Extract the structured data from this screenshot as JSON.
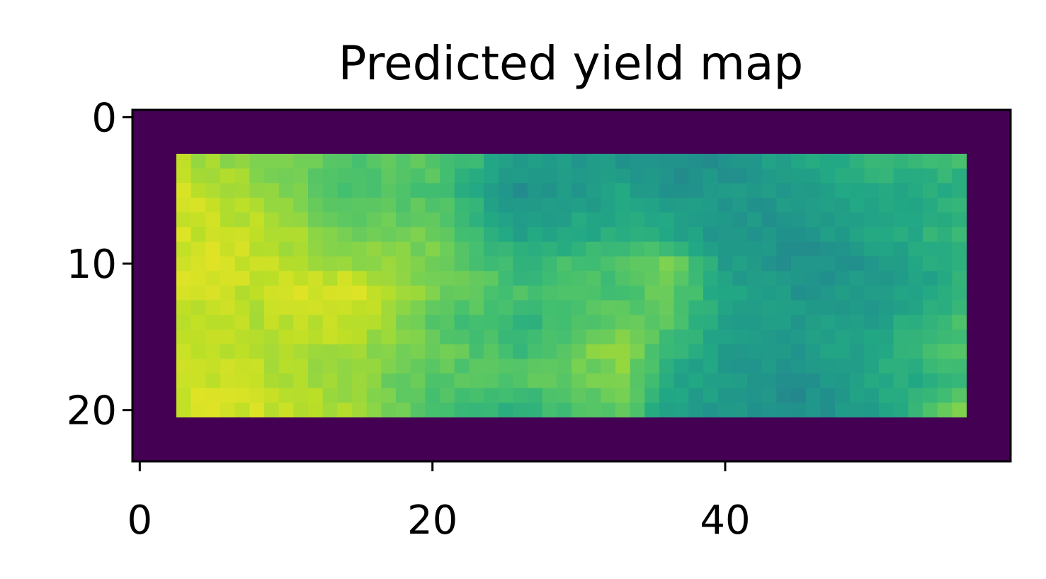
{
  "chart_data": {
    "type": "heatmap",
    "title": "Predicted yield map",
    "xlabel": "",
    "ylabel": "",
    "colormap": "viridis",
    "grid": false,
    "n_rows": 24,
    "n_cols": 60,
    "xlim": [
      -0.5,
      59.5
    ],
    "ylim": [
      23.5,
      -0.5
    ],
    "x_ticks": [
      0,
      20,
      40
    ],
    "y_ticks": [
      0,
      10,
      20
    ],
    "x_tick_labels": [
      "0",
      "20",
      "40"
    ],
    "y_tick_labels": [
      "0",
      "10",
      "20"
    ],
    "masked_value": 0,
    "valid_rows": [
      3,
      20
    ],
    "valid_cols": [
      3,
      56
    ],
    "value_range": [
      0,
      1
    ],
    "row_profiles": {
      "columns_at": [
        3,
        8,
        14,
        20,
        26,
        33,
        36,
        40,
        45,
        50,
        56
      ],
      "3": [
        0.88,
        0.82,
        0.72,
        0.75,
        0.55,
        0.52,
        0.48,
        0.5,
        0.58,
        0.66,
        0.68
      ],
      "5": [
        0.92,
        0.86,
        0.7,
        0.72,
        0.5,
        0.58,
        0.52,
        0.52,
        0.55,
        0.6,
        0.62
      ],
      "8": [
        0.93,
        0.9,
        0.8,
        0.78,
        0.58,
        0.62,
        0.6,
        0.52,
        0.5,
        0.58,
        0.66
      ],
      "10": [
        0.94,
        0.92,
        0.85,
        0.8,
        0.66,
        0.72,
        0.8,
        0.55,
        0.5,
        0.52,
        0.64
      ],
      "12": [
        0.93,
        0.9,
        0.97,
        0.8,
        0.7,
        0.7,
        0.78,
        0.58,
        0.52,
        0.54,
        0.62
      ],
      "14": [
        0.92,
        0.88,
        0.92,
        0.74,
        0.64,
        0.78,
        0.74,
        0.56,
        0.54,
        0.56,
        0.7
      ],
      "16": [
        0.92,
        0.88,
        0.86,
        0.78,
        0.68,
        0.85,
        0.66,
        0.56,
        0.52,
        0.6,
        0.72
      ],
      "18": [
        0.94,
        0.9,
        0.84,
        0.74,
        0.72,
        0.8,
        0.6,
        0.54,
        0.48,
        0.58,
        0.66
      ],
      "20": [
        0.93,
        0.92,
        0.88,
        0.7,
        0.64,
        0.76,
        0.56,
        0.54,
        0.48,
        0.56,
        0.78
      ]
    }
  }
}
